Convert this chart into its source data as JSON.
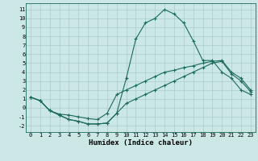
{
  "xlabel": "Humidex (Indice chaleur)",
  "bg_color": "#cce8e6",
  "grid_color": "#aaccca",
  "line_color": "#1a6b5a",
  "xlim": [
    -0.5,
    23.5
  ],
  "ylim": [
    -2.7,
    11.7
  ],
  "xticks": [
    0,
    1,
    2,
    3,
    4,
    5,
    6,
    7,
    8,
    9,
    10,
    11,
    12,
    13,
    14,
    15,
    16,
    17,
    18,
    19,
    20,
    21,
    22,
    23
  ],
  "yticks": [
    -2,
    -1,
    0,
    1,
    2,
    3,
    4,
    5,
    6,
    7,
    8,
    9,
    10,
    11
  ],
  "line1_x": [
    0,
    1,
    2,
    3,
    4,
    5,
    6,
    7,
    8,
    9,
    10,
    11,
    12,
    13,
    14,
    15,
    16,
    17,
    18,
    19,
    20,
    21,
    22,
    23
  ],
  "line1_y": [
    1.2,
    0.8,
    -0.3,
    -0.8,
    -1.3,
    -1.5,
    -1.8,
    -1.8,
    -1.7,
    -0.6,
    3.3,
    7.7,
    9.5,
    10.0,
    11.0,
    10.5,
    9.5,
    7.5,
    5.3,
    5.3,
    4.0,
    3.3,
    2.0,
    1.5
  ],
  "line2_x": [
    0,
    1,
    2,
    3,
    4,
    5,
    6,
    7,
    8,
    9,
    10,
    11,
    12,
    13,
    14,
    15,
    16,
    17,
    18,
    19,
    20,
    21,
    22,
    23
  ],
  "line2_y": [
    1.2,
    0.8,
    -0.3,
    -0.7,
    -0.8,
    -1.0,
    -1.2,
    -1.3,
    -0.6,
    1.5,
    2.0,
    2.5,
    3.0,
    3.5,
    4.0,
    4.2,
    4.5,
    4.7,
    5.0,
    5.2,
    5.3,
    4.0,
    3.3,
    2.0
  ],
  "line3_x": [
    0,
    1,
    2,
    3,
    4,
    5,
    6,
    7,
    8,
    9,
    10,
    11,
    12,
    13,
    14,
    15,
    16,
    17,
    18,
    19,
    20,
    21,
    22,
    23
  ],
  "line3_y": [
    1.2,
    0.8,
    -0.3,
    -0.8,
    -1.3,
    -1.5,
    -1.8,
    -1.8,
    -1.7,
    -0.6,
    0.5,
    1.0,
    1.5,
    2.0,
    2.5,
    3.0,
    3.5,
    4.0,
    4.5,
    5.0,
    5.2,
    3.8,
    3.0,
    1.8
  ],
  "xlabel_fontsize": 6.5,
  "tick_fontsize": 5.0
}
